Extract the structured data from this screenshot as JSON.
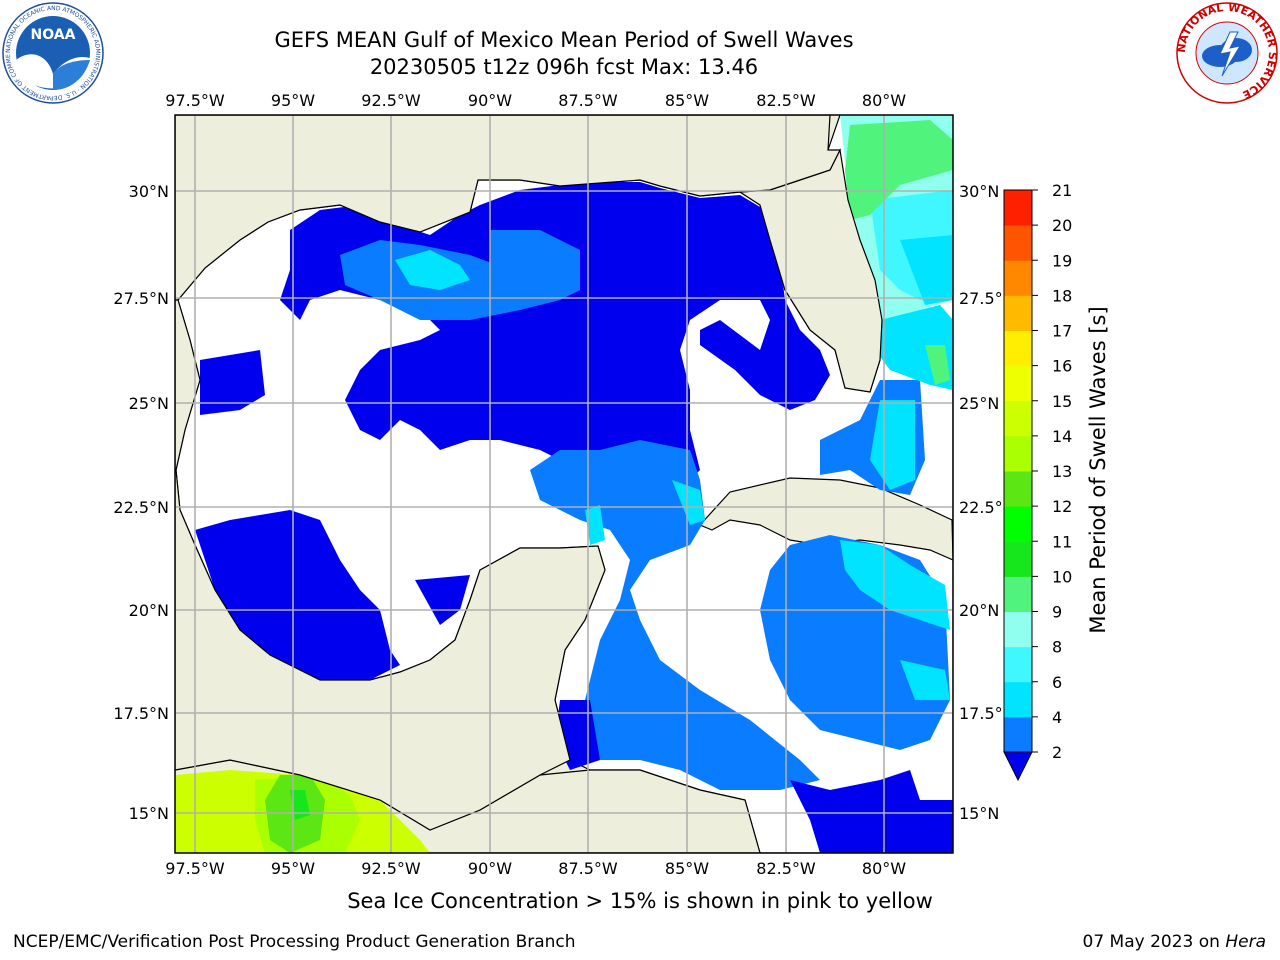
{
  "title": {
    "line1": "GEFS MEAN Gulf of Mexico Mean Period of Swell Waves",
    "line2": "20230505 t12z 096h fcst   Max: 13.46"
  },
  "map": {
    "lon_labels": [
      "97.5°W",
      "95°W",
      "92.5°W",
      "90°W",
      "87.5°W",
      "85°W",
      "82.5°W",
      "80°W"
    ],
    "lat_labels": [
      "30°N",
      "27.5°N",
      "25°N",
      "22.5°N",
      "20°N",
      "17.5°N",
      "15°N"
    ],
    "lon_extent": [
      -98,
      -78.25
    ],
    "lat_extent": [
      14,
      31.75
    ],
    "land_color": "#eeeedd",
    "grid_color": "#b0b0b0"
  },
  "colorbar": {
    "label": "Mean Period of Swell Waves [s]",
    "ticks": [
      "2",
      "4",
      "6",
      "8",
      "9",
      "10",
      "11",
      "12",
      "13",
      "14",
      "15",
      "16",
      "17",
      "18",
      "19",
      "20",
      "21"
    ],
    "colors": [
      "#0000ee",
      "#0a7cff",
      "#00e4ff",
      "#40f7ff",
      "#90fff0",
      "#50f47c",
      "#16e61c",
      "#00ff00",
      "#5ce614",
      "#aaff00",
      "#ccff00",
      "#eeff00",
      "#ffee00",
      "#ffbb00",
      "#ff8800",
      "#ff5500",
      "#ff2000",
      "#ff0000"
    ]
  },
  "ice_note": "Sea Ice Concentration > 15% is shown in pink to yellow",
  "footer": {
    "left": "NCEP/EMC/Verification Post Processing Product Generation Branch",
    "right_date": "07 May 2023 on",
    "right_host": "Hera"
  },
  "logos": {
    "noaa_text": "NOAA",
    "noaa_ring": "NATIONAL OCEANIC AND ATMOSPHERIC ADMINISTRATION · U.S. DEPARTMENT OF COMMERCE",
    "nws_ring": "NATIONAL WEATHER SERVICE"
  }
}
